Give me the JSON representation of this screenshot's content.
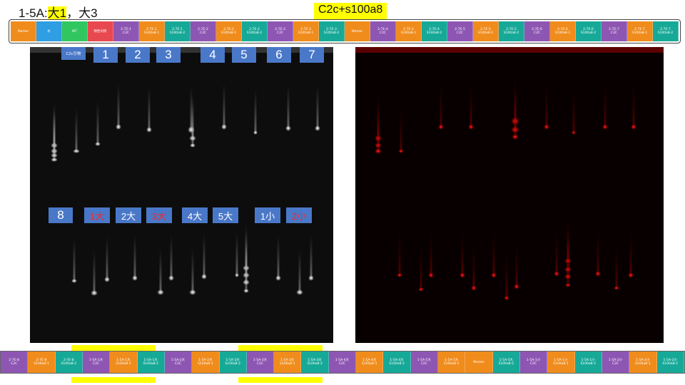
{
  "title": {
    "prefix": "1-5A:",
    "highlight": "大1",
    "suffix": "，大3"
  },
  "title2": "C2c+s100a8",
  "colors": {
    "purple": "#8e56b3",
    "orange": "#f08c1c",
    "teal": "#17a997",
    "red": "#e8484f",
    "blue": "#2f9ee3",
    "green": "#31c760",
    "yellow": "#ffff00",
    "label_blue": "#4a78c8"
  },
  "top_lanes": [
    {
      "text": "Marker",
      "color": "orange"
    },
    {
      "text": "水",
      "color": "blue"
    },
    {
      "text": "WT",
      "color": "green"
    },
    {
      "text": "阴性对照",
      "color": "red"
    },
    {
      "text": "2-7E-1\nC2C",
      "color": "purple"
    },
    {
      "text": "2-7E-1\nS100a8-1",
      "color": "orange"
    },
    {
      "text": "2-7E-1\nS100a8-2",
      "color": "teal"
    },
    {
      "text": "2-7E-2\nC2C",
      "color": "purple"
    },
    {
      "text": "2-7E-2\nS100a8-1",
      "color": "orange"
    },
    {
      "text": "2-7E-2\nS100a8-2",
      "color": "teal"
    },
    {
      "text": "2-7E-3\nC2C",
      "color": "purple"
    },
    {
      "text": "2-7E-3\nS100a8-1",
      "color": "orange"
    },
    {
      "text": "2-7E-3\nS100a8-2",
      "color": "teal"
    },
    {
      "text": "Marker",
      "color": "orange"
    },
    {
      "text": "2-7E-4\nC2C",
      "color": "purple"
    },
    {
      "text": "2-7E-4\nS100a8-1",
      "color": "orange"
    },
    {
      "text": "2-7E-4\nS100a8-2",
      "color": "teal"
    },
    {
      "text": "2-7E-5\nC2C",
      "color": "purple"
    },
    {
      "text": "2-7E-5\nS100a8-1",
      "color": "orange"
    },
    {
      "text": "2-7E-5\nS100a8-2",
      "color": "teal"
    },
    {
      "text": "2-7E-6\nC2C",
      "color": "purple"
    },
    {
      "text": "2-7E-6\nS100a8-1",
      "color": "orange"
    },
    {
      "text": "2-7E-6\nS100a8-2",
      "color": "teal"
    },
    {
      "text": "2-7E-7\nC2C",
      "color": "purple"
    },
    {
      "text": "2-7E-7\nS100a8-1",
      "color": "orange"
    },
    {
      "text": "2-7E-7\nS100a8-2",
      "color": "teal"
    }
  ],
  "bottom_lanes": [
    {
      "text": "2-7E-8\nC2C",
      "color": "purple"
    },
    {
      "text": "2-7E-8\nS100a8-1",
      "color": "orange"
    },
    {
      "text": "2-7E-8\nS100a8-2",
      "color": "teal"
    },
    {
      "text": "1-5A-1大\nC2C",
      "color": "purple"
    },
    {
      "text": "1-5A-1大\nS100a8-1",
      "color": "orange"
    },
    {
      "text": "1-5A-1大\nS100a8-2",
      "color": "teal"
    },
    {
      "text": "1-5A-2大\nC2C",
      "color": "purple"
    },
    {
      "text": "1-5A-2大\nS100a8-1",
      "color": "orange"
    },
    {
      "text": "1-5A-2大\nS100a8-2",
      "color": "teal"
    },
    {
      "text": "1-5A-3大\nC2C",
      "color": "purple"
    },
    {
      "text": "1-5A-3大\nS100a8-1",
      "color": "orange"
    },
    {
      "text": "1-5A-3大\nS100a8-2",
      "color": "teal"
    },
    {
      "text": "1-5A-4大\nC2C",
      "color": "purple"
    },
    {
      "text": "1-5A-4大\nS100a8-1",
      "color": "orange"
    },
    {
      "text": "1-5A-4大\nS100a8-2",
      "color": "teal"
    },
    {
      "text": "1-5A-5大\nC2C",
      "color": "purple"
    },
    {
      "text": "1-5A-5大\nS100a8-1",
      "color": "orange"
    },
    {
      "text": "Marker",
      "color": "orange"
    },
    {
      "text": "1-5A-5大\nS100a8-2",
      "color": "teal"
    },
    {
      "text": "1-5A-1小\nC2C",
      "color": "purple"
    },
    {
      "text": "1-5A-1小\nS100a8-1",
      "color": "orange"
    },
    {
      "text": "1-5A-1小\nS100a8-2",
      "color": "teal"
    },
    {
      "text": "1-5A-2小\nC2C",
      "color": "purple"
    },
    {
      "text": "1-5A-2小\nS100a8-1",
      "color": "orange"
    },
    {
      "text": "1-5A-2小\nS100a8-2",
      "color": "teal"
    }
  ],
  "gel_labels_top": [
    {
      "text": "C2c引物",
      "style": "small"
    },
    {
      "text": "1",
      "style": "big"
    },
    {
      "text": "2",
      "style": "big"
    },
    {
      "text": "3",
      "style": "big"
    },
    {
      "text": "4",
      "style": "big"
    },
    {
      "text": "5",
      "style": "big"
    },
    {
      "text": "6",
      "style": "big"
    },
    {
      "text": "7",
      "style": "big"
    }
  ],
  "gel_labels_bottom": [
    {
      "text": "8",
      "style": "big"
    },
    {
      "text": "1大",
      "style": "cjk",
      "red": true
    },
    {
      "text": "2大",
      "style": "cjk"
    },
    {
      "text": "3大",
      "style": "cjk",
      "red": true
    },
    {
      "text": "4大",
      "style": "cjk"
    },
    {
      "text": "5大",
      "style": "cjk"
    },
    {
      "text": "1小",
      "style": "cjk"
    },
    {
      "text": "2小",
      "style": "cjk",
      "red": true
    }
  ]
}
